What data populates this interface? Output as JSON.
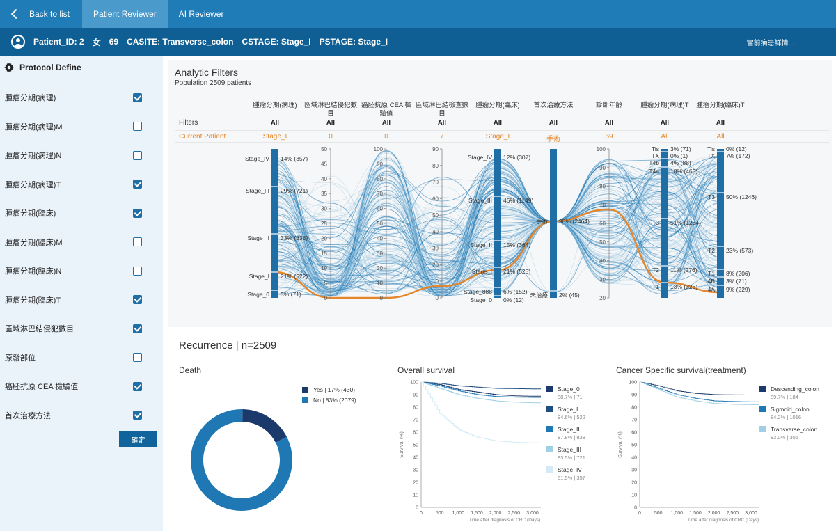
{
  "nav": {
    "back_label": "Back to list",
    "tabs": [
      {
        "label": "Patient Reviewer",
        "active": true
      },
      {
        "label": "AI Reviewer",
        "active": false
      }
    ]
  },
  "patient": {
    "id": "Patient_ID: 2",
    "sex": "女",
    "age": "69",
    "casite": "CASITE: Transverse_colon",
    "cstage": "CSTAGE: Stage_I",
    "pstage": "PSTAGE: Stage_I",
    "detail_link": "當前病患詳情..."
  },
  "sidebar": {
    "title": "Protocol Define",
    "items": [
      {
        "label": "腫瘤分期(病理)",
        "checked": true
      },
      {
        "label": "腫瘤分期(病理)M",
        "checked": false
      },
      {
        "label": "腫瘤分期(病理)N",
        "checked": false
      },
      {
        "label": "腫瘤分期(病理)T",
        "checked": true
      },
      {
        "label": "腫瘤分期(臨床)",
        "checked": true
      },
      {
        "label": "腫瘤分期(臨床)M",
        "checked": false
      },
      {
        "label": "腫瘤分期(臨床)N",
        "checked": false
      },
      {
        "label": "腫瘤分期(臨床)T",
        "checked": true
      },
      {
        "label": "區域淋巴結侵犯數目",
        "checked": true
      },
      {
        "label": "原發部位",
        "checked": false
      },
      {
        "label": "癌胚抗原 CEA 檢驗值",
        "checked": true
      },
      {
        "label": "首次治療方法",
        "checked": true
      }
    ],
    "confirm_label": "確定"
  },
  "analytic": {
    "title": "Analytic Filters",
    "population": "Population 2509 patients",
    "row_filters": "Filters",
    "row_current": "Current Patient",
    "columns": [
      {
        "header": "腫瘤分期(病理)",
        "filter": "All",
        "current": "Stage_I"
      },
      {
        "header": "區域淋巴結侵犯數目",
        "filter": "All",
        "current": "0"
      },
      {
        "header": "癌胚抗原 CEA 檢驗值",
        "filter": "All",
        "current": "0"
      },
      {
        "header": "區域淋巴結檢查數目",
        "filter": "All",
        "current": "7"
      },
      {
        "header": "腫瘤分期(臨床)",
        "filter": "All",
        "current": "Stage_I"
      },
      {
        "header": "首次治療方法",
        "filter": "All",
        "current": "手術"
      },
      {
        "header": "診斷年齡",
        "filter": "All",
        "current": "69"
      },
      {
        "header": "腫瘤分期(病理)T",
        "filter": "All",
        "current": "All"
      },
      {
        "header": "腫瘤分期(臨床)T",
        "filter": "All",
        "current": "All"
      }
    ],
    "axes": {
      "pstage": [
        {
          "cat": "Stage_IV",
          "label": "14% (357)"
        },
        {
          "cat": "Stage_III",
          "label": "29% (721)"
        },
        {
          "cat": "Stage_II",
          "label": "33% (838)"
        },
        {
          "cat": "Stage_I",
          "label": "21% (522)"
        },
        {
          "cat": "Stage_0",
          "label": "3% (71)"
        }
      ],
      "lymph_ticks": [
        "50",
        "45",
        "40",
        "35",
        "30",
        "25",
        "20",
        "15",
        "10",
        "5",
        "0"
      ],
      "cea_ticks": [
        "100",
        "90",
        "80",
        "70",
        "60",
        "50",
        "40",
        "30",
        "20",
        "10",
        "0"
      ],
      "exam_ticks": [
        "90",
        "80",
        "70",
        "60",
        "50",
        "40",
        "30",
        "20",
        "10",
        "0"
      ],
      "cstage": [
        {
          "cat": "Stage_IV",
          "label": "12% (307)"
        },
        {
          "cat": "Stage_III",
          "label": "46% (1149)"
        },
        {
          "cat": "Stage_II",
          "label": "15% (364)"
        },
        {
          "cat": "Stage_I",
          "label": "21% (525)"
        },
        {
          "cat": "Stage_888",
          "label": "6% (152)"
        },
        {
          "cat": "Stage_0",
          "label": "0% (12)"
        }
      ],
      "treatment": [
        {
          "cat": "手術",
          "label": "98% (2464)"
        },
        {
          "cat": "未治療",
          "label": "2% (45)"
        }
      ],
      "age_ticks": [
        "100",
        "90",
        "80",
        "70",
        "60",
        "50",
        "40",
        "30",
        "20"
      ],
      "pt": [
        {
          "cat": "Tis",
          "label": "3% (71)"
        },
        {
          "cat": "TX",
          "label": "0% (1)"
        },
        {
          "cat": "T4b",
          "label": "4% (88)"
        },
        {
          "cat": "T4a",
          "label": "18% (463)"
        },
        {
          "cat": "T3",
          "label": "51% (1284)"
        },
        {
          "cat": "T2",
          "label": "11% (276)"
        },
        {
          "cat": "T1",
          "label": "13% (326)"
        }
      ],
      "ct": [
        {
          "cat": "Tis",
          "label": "0% (12)"
        },
        {
          "cat": "TX",
          "label": "7% (172)"
        },
        {
          "cat": "T3",
          "label": "50% (1246)"
        },
        {
          "cat": "T2",
          "label": "23% (573)"
        },
        {
          "cat": "T1",
          "label": "8% (206)"
        },
        {
          "cat": "4B",
          "label": "3% (71)"
        },
        {
          "cat": "4A",
          "label": "9% (229)"
        }
      ]
    }
  },
  "recurrence": {
    "title": "Recurrence | n=2509"
  },
  "colors": {
    "primary": "#1f7cb7",
    "dark": "#1b3a6b",
    "light": "#9fd0e6",
    "orange": "#e4872c"
  },
  "chart_data": [
    {
      "type": "pie",
      "title": "Death",
      "categories": [
        "Yes | 17% (430)",
        "No | 83% (2079)"
      ],
      "values": [
        430,
        2079
      ],
      "colors": [
        "#1b3a6b",
        "#1f78b4"
      ],
      "legend": "right"
    },
    {
      "type": "line",
      "title": "Overall survival",
      "ylabel": "Survival (%)",
      "xlabel": "Time after diagnosis of CRC (Days)",
      "xlim": [
        0,
        3000
      ],
      "ylim": [
        0,
        100
      ],
      "xticks": [
        "0",
        "500",
        "1,000",
        "1,500",
        "2,000",
        "2,500",
        "3,000"
      ],
      "yticks": [
        "100",
        "90",
        "80",
        "70",
        "60",
        "50",
        "40",
        "30",
        "20",
        "10",
        "0"
      ],
      "x": [
        0,
        500,
        1000,
        1500,
        2000,
        2500,
        3000
      ],
      "series": [
        {
          "name": "Stage_0",
          "label": "88.7% | 71",
          "color": "#1b3a6b",
          "values": [
            100,
            98,
            94,
            92,
            90,
            89,
            88.7
          ]
        },
        {
          "name": "Stage_I",
          "label": "94.6% | 522",
          "color": "#1e4e82",
          "values": [
            100,
            99,
            97,
            96,
            95,
            94.8,
            94.6
          ]
        },
        {
          "name": "Stage_II",
          "label": "87.8% | 838",
          "color": "#1f78b4",
          "values": [
            100,
            97,
            93,
            90,
            88.5,
            88,
            87.8
          ]
        },
        {
          "name": "Stage_III",
          "label": "83.5% | 721",
          "color": "#9fd0e6",
          "values": [
            100,
            95,
            90,
            87,
            85,
            84,
            83.5
          ]
        },
        {
          "name": "Stage_IV",
          "label": "51.5% | 357",
          "color": "#d4ebf5",
          "values": [
            100,
            75,
            62,
            56,
            53,
            52,
            51.5
          ]
        }
      ],
      "legend": "right"
    },
    {
      "type": "line",
      "title": "Cancer Specific survival(treatment)",
      "ylabel": "Survival (%)",
      "xlabel": "Time after diagnosis of CRC (Days)",
      "xlim": [
        0,
        3000
      ],
      "ylim": [
        0,
        100
      ],
      "xticks": [
        "0",
        "500",
        "1,000",
        "1,500",
        "2,000",
        "2,500",
        "3,000"
      ],
      "yticks": [
        "100",
        "90",
        "80",
        "70",
        "60",
        "50",
        "40",
        "30",
        "20",
        "10",
        "0"
      ],
      "x": [
        0,
        500,
        1000,
        1500,
        2000,
        2500,
        3000
      ],
      "series": [
        {
          "name": "Descending_colon",
          "label": "89.7% | 184",
          "color": "#1b3a6b",
          "values": [
            100,
            97,
            93,
            91,
            90,
            89.8,
            89.7
          ]
        },
        {
          "name": "Sigmoid_colon",
          "label": "84.2% | 1016",
          "color": "#1f78b4",
          "values": [
            100,
            95,
            90,
            87,
            85,
            84.5,
            84.2
          ]
        },
        {
          "name": "Transverse_colon",
          "label": "82.0% | 306",
          "color": "#9fd0e6",
          "values": [
            100,
            94,
            88,
            85,
            83,
            82.3,
            82.0
          ]
        }
      ],
      "legend": "right"
    }
  ]
}
